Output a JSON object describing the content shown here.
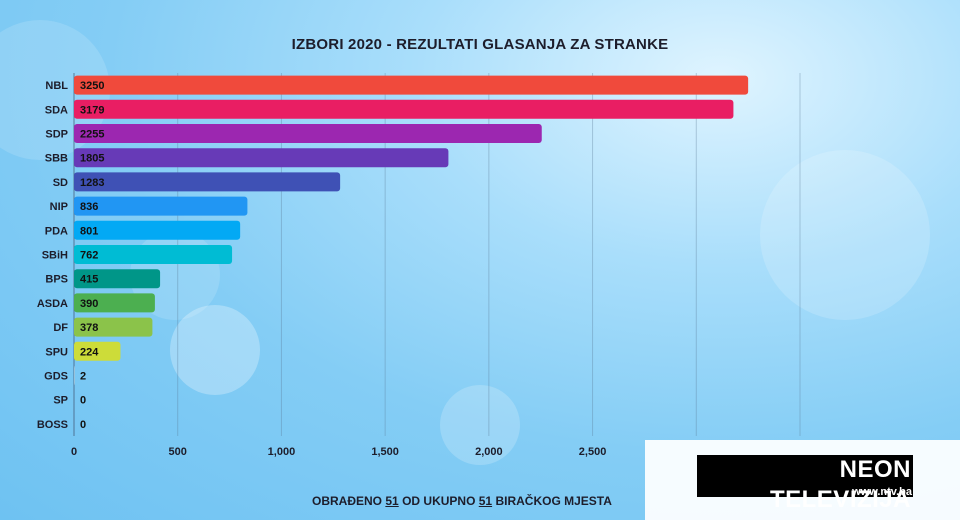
{
  "chart_data": {
    "type": "bar",
    "orientation": "horizontal",
    "title": "IZBORI 2020 - REZULTATI GLASANJA ZA STRANKE",
    "categories": [
      "NBL",
      "SDA",
      "SDP",
      "SBB",
      "SD",
      "NIP",
      "PDA",
      "SBiH",
      "BPS",
      "ASDA",
      "DF",
      "SPU",
      "GDS",
      "SP",
      "BOSS"
    ],
    "values": [
      3250,
      3179,
      2255,
      1805,
      1283,
      836,
      801,
      762,
      415,
      390,
      378,
      224,
      2,
      0,
      0
    ],
    "value_labels": [
      "3250",
      "3179",
      "2255",
      "1805",
      "1283",
      "836",
      "801",
      "762",
      "415",
      "390",
      "378",
      "224",
      "2",
      "0",
      "0"
    ],
    "bar_colors": [
      "#f04a3c",
      "#e91e63",
      "#9c27b0",
      "#673ab7",
      "#3f51b5",
      "#2196f3",
      "#03a9f4",
      "#00bcd4",
      "#009688",
      "#4caf50",
      "#8bc34a",
      "#cddc39",
      "#cccccc",
      "#cccccc",
      "#cccccc"
    ],
    "xlim": [
      0,
      3500
    ],
    "xticks": [
      0,
      500,
      1000,
      1500,
      2000,
      2500
    ],
    "xtick_labels": [
      "0",
      "500",
      "1,000",
      "1,500",
      "2,000",
      "2,500"
    ],
    "grid": true,
    "xlabel": "",
    "ylabel": ""
  },
  "footer": {
    "prefix": "OBRAĐENO",
    "processed": "51",
    "middle": "OD UKUPNO",
    "total": "51",
    "suffix": "BIRAČKOG MJESTA"
  },
  "logo": {
    "name": "NEON TELEVIZIJA",
    "url": "www.ntv.ba"
  }
}
